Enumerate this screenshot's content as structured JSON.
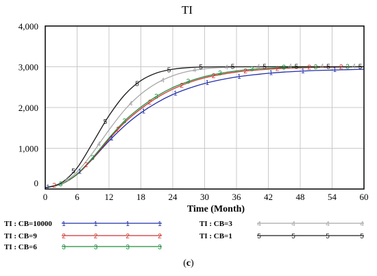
{
  "chart_data": {
    "type": "line",
    "title": "TI",
    "xlabel": "Time (Month)",
    "ylabel": "",
    "xlim": [
      0,
      60
    ],
    "ylim": [
      0,
      4000
    ],
    "x_ticks": [
      "0",
      "6",
      "12",
      "18",
      "24",
      "30",
      "36",
      "42",
      "48",
      "54",
      "60"
    ],
    "y_ticks": [
      "0",
      "1,000",
      "2,000",
      "3,000",
      "4,000"
    ],
    "grid": true,
    "legend_position": "bottom",
    "series": [
      {
        "name": "TI : CB=10000",
        "marker": "1",
        "color": "#1f2fa8",
        "x": [
          0,
          3,
          6,
          9,
          12,
          15,
          18,
          21,
          24,
          27,
          30,
          33,
          36,
          39,
          42,
          45,
          48,
          51,
          54,
          57,
          60
        ],
        "y": [
          30,
          120,
          360,
          750,
          1180,
          1560,
          1870,
          2120,
          2320,
          2470,
          2590,
          2680,
          2750,
          2800,
          2840,
          2870,
          2890,
          2910,
          2920,
          2930,
          2940
        ]
      },
      {
        "name": "TI : CB=9",
        "marker": "2",
        "color": "#d0312d",
        "x": [
          0,
          3,
          6,
          9,
          12,
          15,
          18,
          21,
          24,
          27,
          30,
          33,
          36,
          39,
          42,
          45,
          48,
          51,
          54,
          57,
          60
        ],
        "y": [
          30,
          120,
          360,
          760,
          1220,
          1640,
          1970,
          2240,
          2450,
          2610,
          2730,
          2810,
          2870,
          2910,
          2940,
          2960,
          2975,
          2985,
          2990,
          2995,
          3000
        ]
      },
      {
        "name": "TI : CB=6",
        "marker": "3",
        "color": "#1e8a3c",
        "x": [
          0,
          3,
          6,
          9,
          12,
          15,
          18,
          21,
          24,
          27,
          30,
          33,
          36,
          39,
          42,
          45,
          48,
          51,
          54,
          57,
          60
        ],
        "y": [
          30,
          120,
          370,
          780,
          1250,
          1680,
          2010,
          2280,
          2490,
          2640,
          2760,
          2840,
          2900,
          2940,
          2965,
          2980,
          2990,
          2995,
          3000,
          3000,
          3000
        ]
      },
      {
        "name": "TI : CB=3",
        "marker": "4",
        "color": "#a6a6a6",
        "x": [
          0,
          3,
          6,
          9,
          12,
          15,
          18,
          21,
          24,
          27,
          30,
          33,
          36,
          39,
          42,
          45,
          48,
          51,
          54,
          57,
          60
        ],
        "y": [
          30,
          130,
          420,
          900,
          1450,
          1950,
          2330,
          2600,
          2780,
          2890,
          2950,
          2980,
          2995,
          3000,
          3005,
          3005,
          3005,
          3005,
          3005,
          3005,
          3005
        ]
      },
      {
        "name": "TI : CB=1",
        "marker": "5",
        "color": "#1a1a1a",
        "x": [
          0,
          3,
          6,
          9,
          12,
          15,
          18,
          21,
          24,
          27,
          30,
          33,
          36,
          39,
          42,
          45,
          48,
          51,
          54,
          57,
          60
        ],
        "y": [
          30,
          150,
          520,
          1150,
          1800,
          2320,
          2660,
          2850,
          2940,
          2980,
          2995,
          3000,
          3000,
          3000,
          3000,
          3000,
          3000,
          3000,
          3000,
          3000,
          3000
        ]
      }
    ]
  },
  "caption": {
    "open": "(",
    "letter": "c",
    "close": ")"
  }
}
